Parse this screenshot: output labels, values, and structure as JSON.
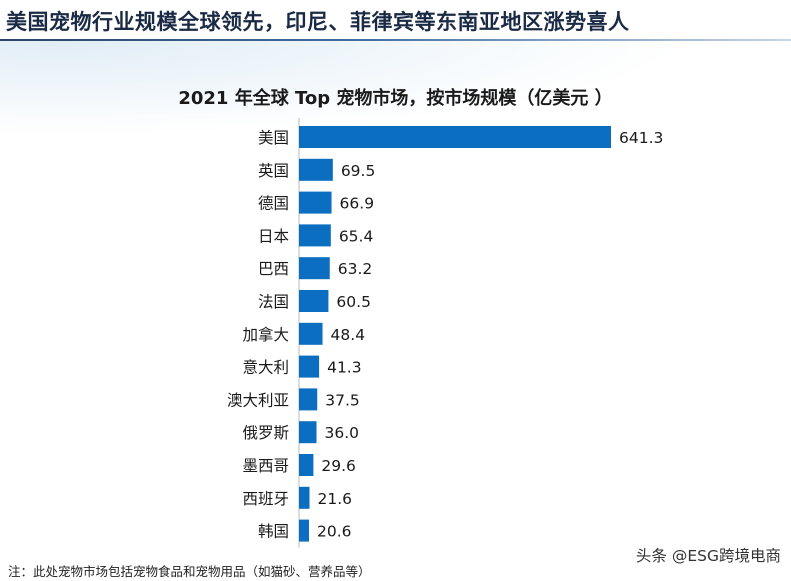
{
  "page_title": "美国宠物行业规模全球领先，印尼、菲律宾等东南亚地区涨势喜人",
  "footnote": "注：此处宠物市场包括宠物食品和宠物用品（如猫砂、营养品等）",
  "watermark": "头条 @ESG跨境电商",
  "colors": {
    "bar": "#0b6ec0",
    "title": "#1a2a44",
    "axis": "#bbbbbb"
  },
  "chart_data": {
    "type": "bar",
    "orientation": "horizontal",
    "title": "2021 年全球 Top 宠物市场，按市场规模（亿美元 ）",
    "categories": [
      "美国",
      "英国",
      "德国",
      "日本",
      "巴西",
      "法国",
      "加拿大",
      "意大利",
      "澳大利亚",
      "俄罗斯",
      "墨西哥",
      "西班牙",
      "韩国"
    ],
    "values": [
      641.3,
      69.5,
      66.9,
      65.4,
      63.2,
      60.5,
      48.4,
      41.3,
      37.5,
      36.0,
      29.6,
      21.6,
      20.6
    ],
    "value_labels": [
      "641.3",
      "69.5",
      "66.9",
      "65.4",
      "63.2",
      "60.5",
      "48.4",
      "41.3",
      "37.5",
      "36.0",
      "29.6",
      "21.6",
      "20.6"
    ],
    "xlim": [
      0,
      641.3
    ],
    "grid": false,
    "legend": "none"
  }
}
